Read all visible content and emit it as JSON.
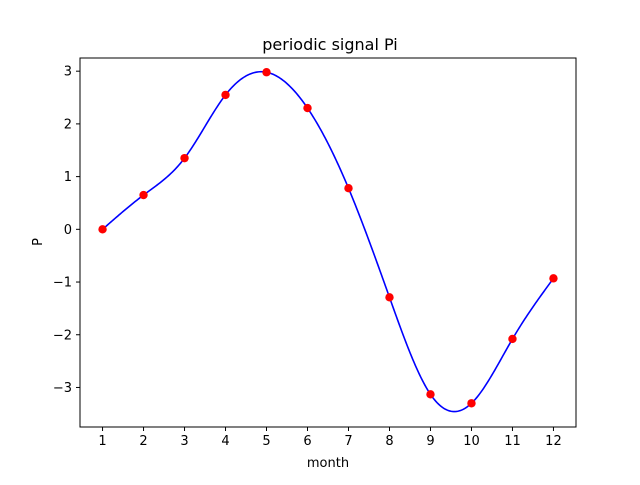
{
  "chart_data": {
    "type": "line",
    "title": "periodic signal Pi",
    "xlabel": "month",
    "ylabel": "P",
    "x": [
      1,
      2,
      3,
      4,
      5,
      6,
      7,
      8,
      9,
      10,
      11,
      12
    ],
    "series": [
      {
        "values": [
          0.0,
          0.65,
          1.35,
          2.55,
          2.98,
          2.3,
          0.78,
          -1.29,
          -3.13,
          -3.3,
          -2.08,
          -0.93
        ],
        "line_color": "#0000ff",
        "marker_color": "#ff0000"
      }
    ],
    "xlim": [
      0.45,
      12.55
    ],
    "ylim": [
      -3.75,
      3.25
    ],
    "x_ticks": [
      1,
      2,
      3,
      4,
      5,
      6,
      7,
      8,
      9,
      10,
      11,
      12
    ],
    "y_ticks": [
      -3,
      -2,
      -1,
      0,
      1,
      2,
      3
    ],
    "grid": false,
    "legend": "none"
  }
}
